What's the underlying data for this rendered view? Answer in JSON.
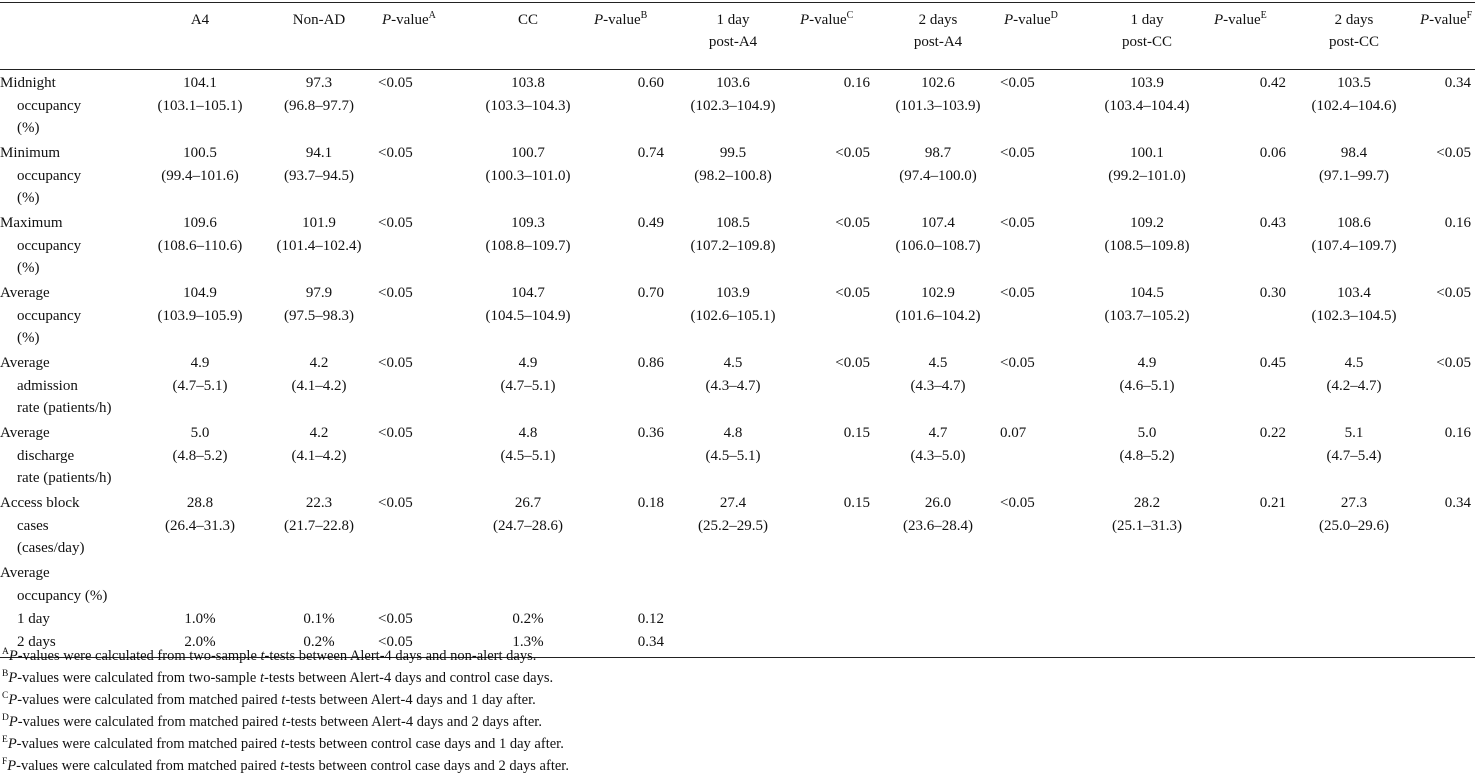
{
  "headers": [
    {
      "l1": "",
      "l2": ""
    },
    {
      "l1": "A4",
      "l2": ""
    },
    {
      "l1": "Non-AD",
      "l2": ""
    },
    {
      "l1": "P",
      "suffix": "-value",
      "sup": "A"
    },
    {
      "l1": "CC",
      "l2": ""
    },
    {
      "l1": "P",
      "suffix": "-value",
      "sup": "B"
    },
    {
      "l1": "1 day",
      "l2": "post-A4"
    },
    {
      "l1": "P",
      "suffix": "-value",
      "sup": "C"
    },
    {
      "l1": "2 days",
      "l2": "post-A4"
    },
    {
      "l1": "P",
      "suffix": "-value",
      "sup": "D"
    },
    {
      "l1": "1 day",
      "l2": "post-CC"
    },
    {
      "l1": "P",
      "suffix": "-value",
      "sup": "E"
    },
    {
      "l1": "2 days",
      "l2": "post-CC"
    },
    {
      "l1": "P",
      "suffix": "-value",
      "sup": "F"
    }
  ],
  "rows": [
    {
      "label": [
        "Midnight",
        "occupancy",
        "(%)"
      ],
      "a4": [
        "104.1",
        "(103.1–105.1)"
      ],
      "nonad": [
        "97.3",
        "(96.8–97.7)"
      ],
      "pA": "<0.05",
      "cc": [
        "103.8",
        "(103.3–104.3)"
      ],
      "pB": "0.60",
      "d1a4": [
        "103.6",
        "(102.3–104.9)"
      ],
      "pC": "0.16",
      "d2a4": [
        "102.6",
        "(101.3–103.9)"
      ],
      "pD": "<0.05",
      "d1cc": [
        "103.9",
        "(103.4–104.4)"
      ],
      "pE": "0.42",
      "d2cc": [
        "103.5",
        "(102.4–104.6)"
      ],
      "pF": "0.34"
    },
    {
      "label": [
        "Minimum",
        "occupancy",
        "(%)"
      ],
      "a4": [
        "100.5",
        "(99.4–101.6)"
      ],
      "nonad": [
        "94.1",
        "(93.7–94.5)"
      ],
      "pA": "<0.05",
      "cc": [
        "100.7",
        "(100.3–101.0)"
      ],
      "pB": "0.74",
      "d1a4": [
        "99.5",
        "(98.2–100.8)"
      ],
      "pC": "<0.05",
      "d2a4": [
        "98.7",
        "(97.4–100.0)"
      ],
      "pD": "<0.05",
      "d1cc": [
        "100.1",
        "(99.2–101.0)"
      ],
      "pE": "0.06",
      "d2cc": [
        "98.4",
        "(97.1–99.7)"
      ],
      "pF": "<0.05"
    },
    {
      "label": [
        "Maximum",
        "occupancy",
        "(%)"
      ],
      "a4": [
        "109.6",
        "(108.6–110.6)"
      ],
      "nonad": [
        "101.9",
        "(101.4–102.4)"
      ],
      "pA": "<0.05",
      "cc": [
        "109.3",
        "(108.8–109.7)"
      ],
      "pB": "0.49",
      "d1a4": [
        "108.5",
        "(107.2–109.8)"
      ],
      "pC": "<0.05",
      "d2a4": [
        "107.4",
        "(106.0–108.7)"
      ],
      "pD": "<0.05",
      "d1cc": [
        "109.2",
        "(108.5–109.8)"
      ],
      "pE": "0.43",
      "d2cc": [
        "108.6",
        "(107.4–109.7)"
      ],
      "pF": "0.16"
    },
    {
      "label": [
        "Average",
        "occupancy",
        "(%)"
      ],
      "a4": [
        "104.9",
        "(103.9–105.9)"
      ],
      "nonad": [
        "97.9",
        "(97.5–98.3)"
      ],
      "pA": "<0.05",
      "cc": [
        "104.7",
        "(104.5–104.9)"
      ],
      "pB": "0.70",
      "d1a4": [
        "103.9",
        "(102.6–105.1)"
      ],
      "pC": "<0.05",
      "d2a4": [
        "102.9",
        "(101.6–104.2)"
      ],
      "pD": "<0.05",
      "d1cc": [
        "104.5",
        "(103.7–105.2)"
      ],
      "pE": "0.30",
      "d2cc": [
        "103.4",
        "(102.3–104.5)"
      ],
      "pF": "<0.05"
    },
    {
      "label": [
        "Average",
        "admission",
        "rate (patients/h)"
      ],
      "a4": [
        "4.9",
        "(4.7–5.1)"
      ],
      "nonad": [
        "4.2",
        "(4.1–4.2)"
      ],
      "pA": "<0.05",
      "cc": [
        "4.9",
        "(4.7–5.1)"
      ],
      "pB": "0.86",
      "d1a4": [
        "4.5",
        "(4.3–4.7)"
      ],
      "pC": "<0.05",
      "d2a4": [
        "4.5",
        "(4.3–4.7)"
      ],
      "pD": "<0.05",
      "d1cc": [
        "4.9",
        "(4.6–5.1)"
      ],
      "pE": "0.45",
      "d2cc": [
        "4.5",
        "(4.2–4.7)"
      ],
      "pF": "<0.05"
    },
    {
      "label": [
        "Average",
        "discharge",
        "rate (patients/h)"
      ],
      "a4": [
        "5.0",
        "(4.8–5.2)"
      ],
      "nonad": [
        "4.2",
        "(4.1–4.2)"
      ],
      "pA": "<0.05",
      "cc": [
        "4.8",
        "(4.5–5.1)"
      ],
      "pB": "0.36",
      "d1a4": [
        "4.8",
        "(4.5–5.1)"
      ],
      "pC": "0.15",
      "d2a4": [
        "4.7",
        "(4.3–5.0)"
      ],
      "pD": "0.07",
      "d1cc": [
        "5.0",
        "(4.8–5.2)"
      ],
      "pE": "0.22",
      "d2cc": [
        "5.1",
        "(4.7–5.4)"
      ],
      "pF": "0.16"
    },
    {
      "label": [
        "Access block",
        "cases",
        "(cases/day)"
      ],
      "a4": [
        "28.8",
        "(26.4–31.3)"
      ],
      "nonad": [
        "22.3",
        "(21.7–22.8)"
      ],
      "pA": "<0.05",
      "cc": [
        "26.7",
        "(24.7–28.6)"
      ],
      "pB": "0.18",
      "d1a4": [
        "27.4",
        "(25.2–29.5)"
      ],
      "pC": "0.15",
      "d2a4": [
        "26.0",
        "(23.6–28.4)"
      ],
      "pD": "<0.05",
      "d1cc": [
        "28.2",
        "(25.1–31.3)"
      ],
      "pE": "0.21",
      "d2cc": [
        "27.3",
        "(25.0–29.6)"
      ],
      "pF": "0.34"
    }
  ],
  "group": {
    "label": [
      "Average",
      "occupancy (%)"
    ],
    "subrows": [
      {
        "label": "1 day",
        "a4": "1.0%",
        "nonad": "0.1%",
        "pA": "<0.05",
        "cc": "0.2%",
        "pB": "0.12"
      },
      {
        "label": "2 days",
        "a4": "2.0%",
        "nonad": "0.2%",
        "pA": "<0.05",
        "cc": "1.3%",
        "pB": "0.34"
      }
    ]
  },
  "notes": [
    {
      "sup": "A",
      "p": "P",
      "text1": "-values were calculated from two-sample ",
      "t": "t",
      "text2": "-tests between Alert-4 days and non-alert days."
    },
    {
      "sup": "B",
      "p": "P",
      "text1": "-values were calculated from two-sample ",
      "t": "t",
      "text2": "-tests between Alert-4 days and control case days."
    },
    {
      "sup": "C",
      "p": "P",
      "text1": "-values were calculated from matched paired ",
      "t": "t",
      "text2": "-tests between Alert-4 days and 1 day after."
    },
    {
      "sup": "D",
      "p": "P",
      "text1": "-values were calculated from matched paired ",
      "t": "t",
      "text2": "-tests between Alert-4 days and 2 days after."
    },
    {
      "sup": "E",
      "p": "P",
      "text1": "-values were calculated from matched paired ",
      "t": "t",
      "text2": "-tests between control case days and 1 day after."
    },
    {
      "sup": "F",
      "p": "P",
      "text1": "-values were calculated from matched paired ",
      "t": "t",
      "text2": "-tests between control case days and 2 days after."
    }
  ]
}
